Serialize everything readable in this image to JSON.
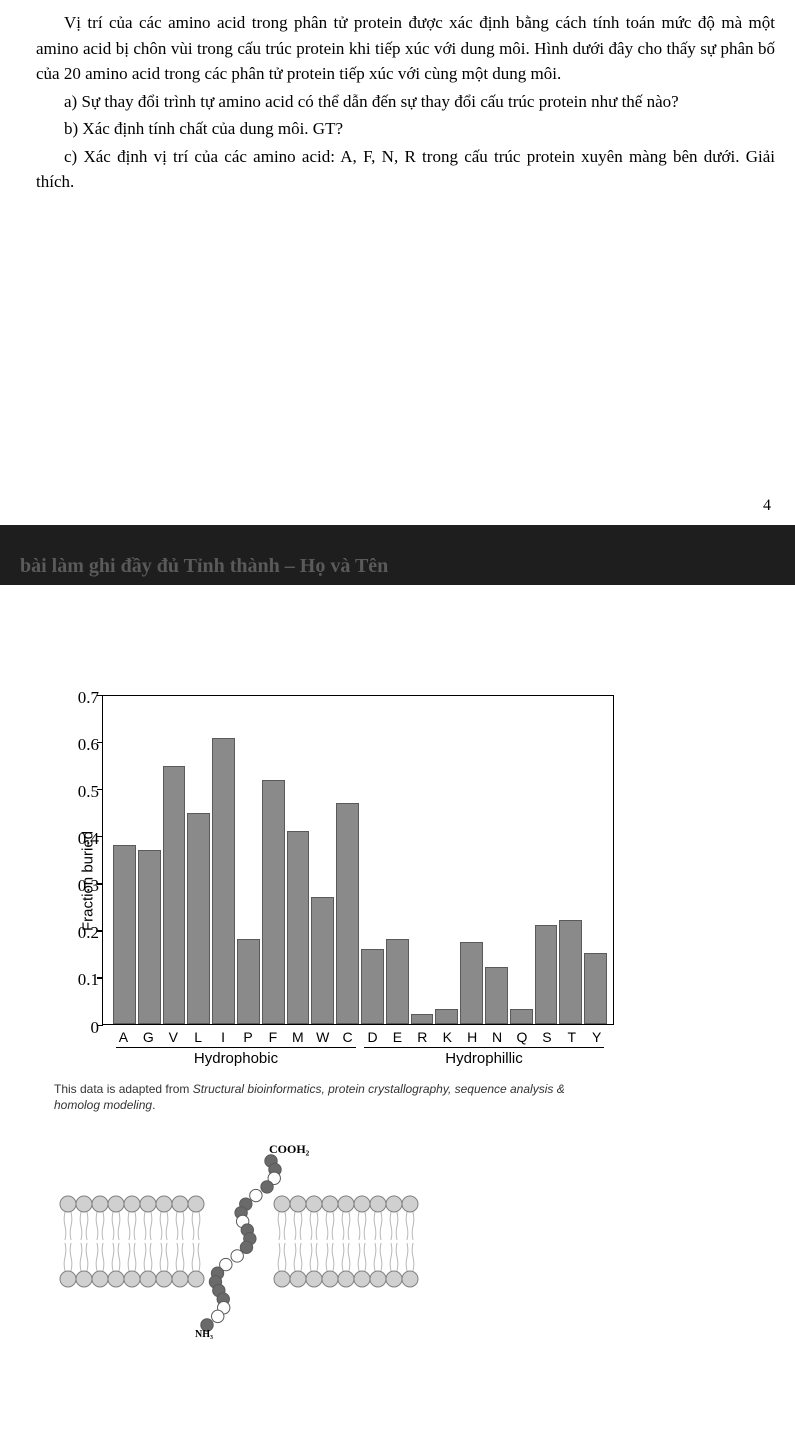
{
  "text": {
    "p1": "Vị trí của các amino acid trong phân tử protein được xác định bằng cách tính toán mức độ mà một amino acid bị chôn vùi trong cấu trúc protein khi tiếp xúc với dung môi. Hình dưới đây cho thấy sự phân bố của 20 amino acid trong các phân tử protein tiếp xúc với cùng một dung môi.",
    "qa": "a) Sự thay đổi trình tự amino acid có thể dẫn đến sự thay đổi cấu trúc protein như thế nào?",
    "qb": "b) Xác định tính chất của dung môi. GT?",
    "qc": "c) Xác định vị trí của các amino acid: A, F, N, R trong cấu trúc protein xuyên màng bên dưới. Giải thích.",
    "page_num": "4",
    "band": "bài làm ghi đầy đủ Tỉnh thành – Họ và Tên"
  },
  "chart": {
    "type": "bar",
    "ylabel": "Fraction buried",
    "ylim": [
      0,
      0.7
    ],
    "ytick_step": 0.1,
    "yticks": [
      "0",
      "0.1",
      "0.2",
      "0.3",
      "0.4",
      "0.5",
      "0.6",
      "0.7"
    ],
    "categories": [
      "A",
      "G",
      "V",
      "L",
      "I",
      "P",
      "F",
      "M",
      "W",
      "C",
      "D",
      "E",
      "R",
      "K",
      "H",
      "N",
      "Q",
      "S",
      "T",
      "Y"
    ],
    "values": [
      0.38,
      0.37,
      0.55,
      0.45,
      0.61,
      0.18,
      0.52,
      0.41,
      0.27,
      0.47,
      0.16,
      0.18,
      0.02,
      0.03,
      0.175,
      0.12,
      0.03,
      0.21,
      0.22,
      0.15
    ],
    "groups": [
      {
        "label": "Hydrophobic",
        "span": 10
      },
      {
        "label": "Hydrophillic",
        "span": 10
      }
    ],
    "bar_color": "#8a8a8a",
    "bar_border": "#5a5a5a",
    "axis_color": "#000000",
    "label_fontsize": 14,
    "ylabel_fontsize": 15,
    "font_family": "Arial",
    "caption_plain": "This data is adapted from ",
    "caption_ital": "Structural bioinformatics, protein crystallography, sequence analysis & homolog modeling",
    "caption_end": "."
  },
  "membrane": {
    "top_label": "COOH₂",
    "bottom_label": "NH₃",
    "head_outer": "#d0d0d0",
    "head_stroke": "#808080",
    "tail_color": "#b8b8b8",
    "protein_dark": "#6a6a6a",
    "protein_light": "#ffffff",
    "protein_stroke": "#5a5a5a",
    "label_color": "#000000"
  }
}
